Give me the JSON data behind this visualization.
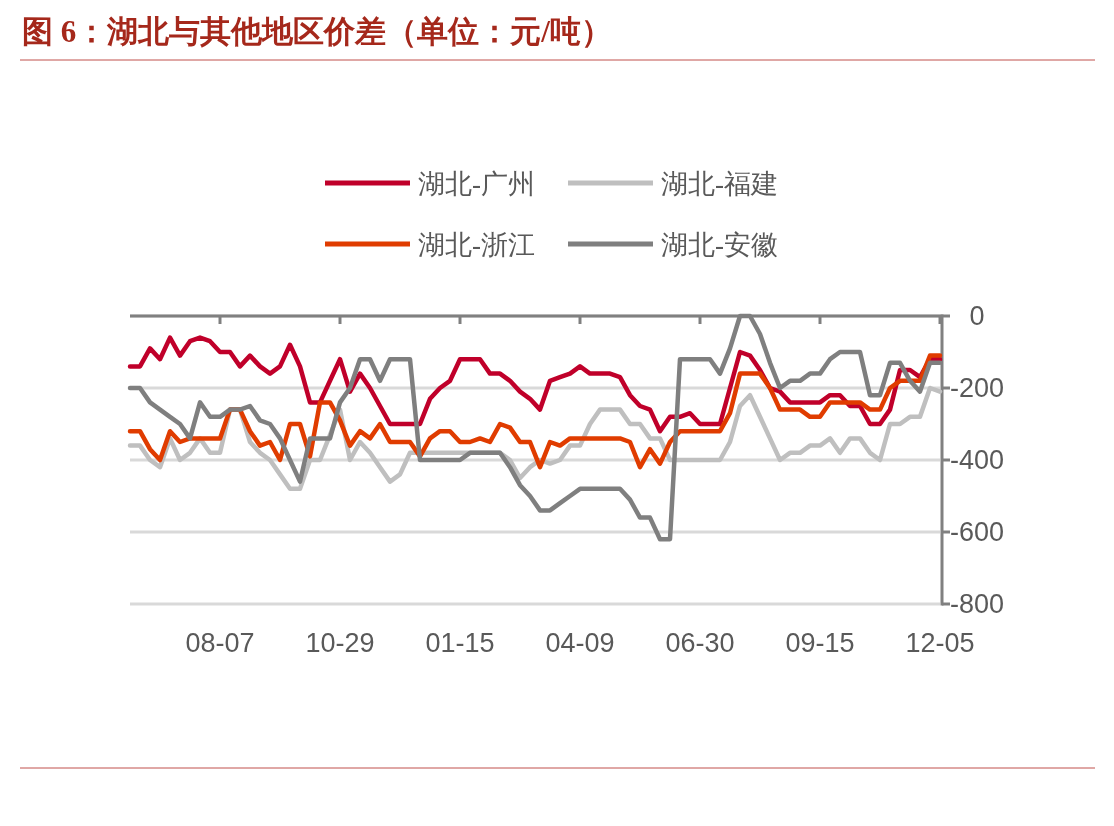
{
  "chart_data": {
    "type": "line",
    "title": "图 6：湖北与其他地区价差（单位：元/吨）",
    "categories": [
      null,
      null,
      null,
      null,
      null,
      null,
      null,
      null,
      null,
      "08-07",
      null,
      null,
      null,
      null,
      null,
      null,
      null,
      null,
      null,
      null,
      null,
      "10-29",
      null,
      null,
      null,
      null,
      null,
      null,
      null,
      null,
      null,
      null,
      null,
      "01-15",
      null,
      null,
      null,
      null,
      null,
      null,
      null,
      null,
      null,
      null,
      null,
      "04-09",
      null,
      null,
      null,
      null,
      null,
      null,
      null,
      null,
      null,
      null,
      null,
      "06-30",
      null,
      null,
      null,
      null,
      null,
      null,
      null,
      null,
      null,
      null,
      null,
      "09-15",
      null,
      null,
      null,
      null,
      null,
      null,
      null,
      null,
      null,
      null,
      null,
      "12-05"
    ],
    "series": [
      {
        "name": "湖北-广州",
        "color": "#c0002a",
        "values": [
          -140,
          -140,
          -90,
          -120,
          -60,
          -110,
          -70,
          -60,
          -70,
          -100,
          -100,
          -140,
          -110,
          -140,
          -160,
          -140,
          -80,
          -140,
          -240,
          -240,
          -180,
          -120,
          -210,
          -160,
          -200,
          -250,
          -300,
          -300,
          -300,
          -300,
          -230,
          -200,
          -180,
          -120,
          -120,
          -120,
          -160,
          -160,
          -180,
          -210,
          -230,
          -260,
          -180,
          -170,
          -160,
          -140,
          -160,
          -160,
          -160,
          -170,
          -220,
          -250,
          -260,
          -320,
          -280,
          -280,
          -270,
          -300,
          -300,
          -300,
          -200,
          -100,
          -110,
          -150,
          -200,
          -210,
          -240,
          -240,
          -240,
          -240,
          -220,
          -220,
          -250,
          -250,
          -300,
          -300,
          -260,
          -150,
          -150,
          -170,
          -120,
          -120
        ]
      },
      {
        "name": "湖北-福建",
        "color": "#bfbfbf",
        "values": [
          -360,
          -360,
          -400,
          -420,
          -340,
          -400,
          -380,
          -340,
          -380,
          -380,
          -260,
          -260,
          -350,
          -380,
          -400,
          -440,
          -480,
          -480,
          -400,
          -400,
          -330,
          -260,
          -400,
          -350,
          -380,
          -420,
          -460,
          -440,
          -380,
          -380,
          -380,
          -380,
          -380,
          -380,
          -380,
          -380,
          -380,
          -380,
          -400,
          -450,
          -420,
          -400,
          -410,
          -400,
          -360,
          -360,
          -300,
          -260,
          -260,
          -260,
          -300,
          -300,
          -340,
          -340,
          -400,
          -400,
          -400,
          -400,
          -400,
          -400,
          -350,
          -250,
          -220,
          -280,
          -340,
          -400,
          -380,
          -380,
          -360,
          -360,
          -340,
          -380,
          -340,
          -340,
          -380,
          -400,
          -300,
          -300,
          -280,
          -280,
          -200,
          -210
        ]
      },
      {
        "name": "湖北-浙江",
        "color": "#e03c00",
        "values": [
          -320,
          -320,
          -370,
          -400,
          -320,
          -350,
          -340,
          -340,
          -340,
          -340,
          -260,
          -260,
          -320,
          -360,
          -350,
          -400,
          -300,
          -300,
          -390,
          -240,
          -240,
          -290,
          -360,
          -320,
          -340,
          -300,
          -350,
          -350,
          -350,
          -390,
          -340,
          -320,
          -320,
          -350,
          -350,
          -340,
          -350,
          -300,
          -310,
          -350,
          -350,
          -420,
          -350,
          -360,
          -340,
          -340,
          -340,
          -340,
          -340,
          -340,
          -350,
          -420,
          -370,
          -410,
          -350,
          -320,
          -320,
          -320,
          -320,
          -320,
          -270,
          -160,
          -160,
          -160,
          -200,
          -260,
          -260,
          -260,
          -280,
          -280,
          -240,
          -240,
          -240,
          -240,
          -260,
          -260,
          -200,
          -180,
          -180,
          -180,
          -110,
          -110
        ]
      },
      {
        "name": "湖北-安徽",
        "color": "#7f7f7f",
        "values": [
          -200,
          -200,
          -240,
          -260,
          -280,
          -300,
          -340,
          -240,
          -280,
          -280,
          -260,
          -260,
          -250,
          -290,
          -300,
          -340,
          -400,
          -460,
          -340,
          -340,
          -340,
          -240,
          -200,
          -120,
          -120,
          -180,
          -120,
          -120,
          -120,
          -400,
          -400,
          -400,
          -400,
          -400,
          -380,
          -380,
          -380,
          -380,
          -420,
          -470,
          -500,
          -540,
          -540,
          -520,
          -500,
          -480,
          -480,
          -480,
          -480,
          -480,
          -510,
          -560,
          -560,
          -620,
          -620,
          -120,
          -120,
          -120,
          -120,
          -160,
          -90,
          0,
          0,
          -50,
          -130,
          -200,
          -180,
          -180,
          -160,
          -160,
          -120,
          -100,
          -100,
          -100,
          -220,
          -220,
          -130,
          -130,
          -180,
          -210,
          -130,
          -130
        ]
      }
    ],
    "ylim": [
      -800,
      0
    ],
    "yticks": [
      0,
      -200,
      -400,
      -600,
      -800
    ],
    "grid": "y",
    "legend": "top",
    "line_style": "solid",
    "marker": "none"
  }
}
